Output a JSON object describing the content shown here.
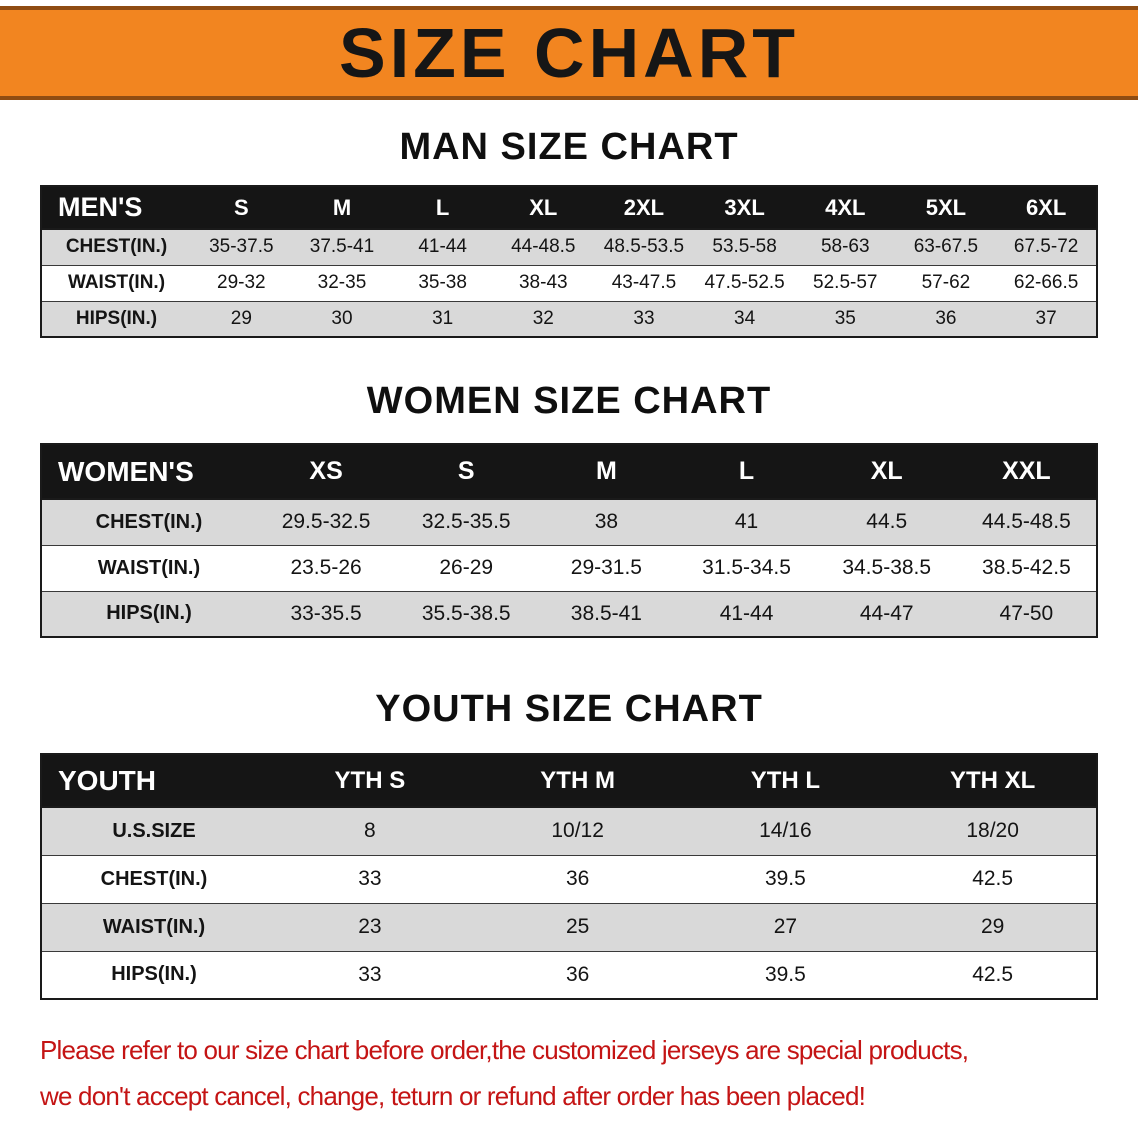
{
  "banner": {
    "title": "SIZE CHART",
    "bg_color": "#f28520"
  },
  "sections": {
    "men": {
      "heading": "MAN SIZE CHART",
      "table": {
        "header": [
          "MEN'S",
          "S",
          "M",
          "L",
          "XL",
          "2XL",
          "3XL",
          "4XL",
          "5XL",
          "6XL"
        ],
        "rows": [
          [
            "CHEST(IN.)",
            "35-37.5",
            "37.5-41",
            "41-44",
            "44-48.5",
            "48.5-53.5",
            "53.5-58",
            "58-63",
            "63-67.5",
            "67.5-72"
          ],
          [
            "WAIST(IN.)",
            "29-32",
            "32-35",
            "35-38",
            "38-43",
            "43-47.5",
            "47.5-52.5",
            "52.5-57",
            "57-62",
            "62-66.5"
          ],
          [
            "HIPS(IN.)",
            "29",
            "30",
            "31",
            "32",
            "33",
            "34",
            "35",
            "36",
            "37"
          ]
        ]
      }
    },
    "women": {
      "heading": "WOMEN SIZE CHART",
      "table": {
        "header": [
          "WOMEN'S",
          "XS",
          "S",
          "M",
          "L",
          "XL",
          "XXL"
        ],
        "rows": [
          [
            "CHEST(IN.)",
            "29.5-32.5",
            "32.5-35.5",
            "38",
            "41",
            "44.5",
            "44.5-48.5"
          ],
          [
            "WAIST(IN.)",
            "23.5-26",
            "26-29",
            "29-31.5",
            "31.5-34.5",
            "34.5-38.5",
            "38.5-42.5"
          ],
          [
            "HIPS(IN.)",
            "33-35.5",
            "35.5-38.5",
            "38.5-41",
            "41-44",
            "44-47",
            "47-50"
          ]
        ]
      }
    },
    "youth": {
      "heading": "YOUTH SIZE CHART",
      "table": {
        "header": [
          "YOUTH",
          "YTH S",
          "YTH M",
          "YTH L",
          "YTH XL"
        ],
        "rows": [
          [
            "U.S.SIZE",
            "8",
            "10/12",
            "14/16",
            "18/20"
          ],
          [
            "CHEST(IN.)",
            "33",
            "36",
            "39.5",
            "42.5"
          ],
          [
            "WAIST(IN.)",
            "23",
            "25",
            "27",
            "29"
          ],
          [
            "HIPS(IN.)",
            "33",
            "36",
            "39.5",
            "42.5"
          ]
        ]
      }
    }
  },
  "disclaimer": {
    "line1": "Please refer to our size chart before order,the customized jerseys are special products,",
    "line2": "we don't accept cancel, change, teturn or refund after order has been placed!",
    "text_color": "#c41414"
  }
}
